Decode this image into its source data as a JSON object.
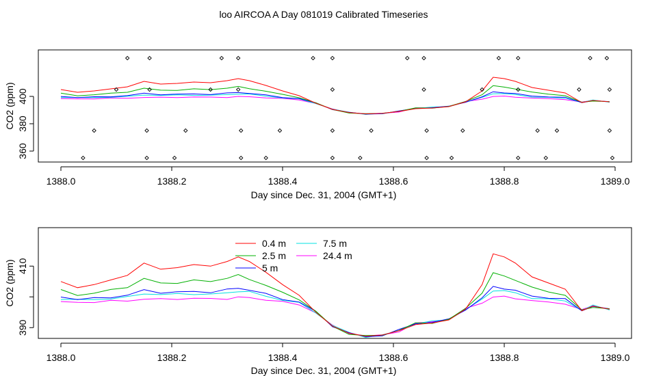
{
  "title": "loo AIRCOA A  Day 081019  Calibrated Timeseries",
  "chart_data": [
    {
      "type": "line",
      "xlabel": "Day since Dec. 31, 2004 (GMT+1)",
      "ylabel": "CO2 (ppm)",
      "xlim": [
        1388.0,
        1389.0
      ],
      "ylim": [
        352,
        434
      ],
      "x_ticks": [
        1388.0,
        1388.2,
        1388.4,
        1388.6,
        1388.8,
        1389.0
      ],
      "x_tick_labels": [
        "1388.0",
        "1388.2",
        "1388.4",
        "1388.6",
        "1388.8",
        "1389.0"
      ],
      "y_ticks": [
        360,
        380,
        400
      ],
      "y_tick_labels": [
        "360",
        "380",
        "400"
      ],
      "colors": [
        "#ff0000",
        "#00b000",
        "#0000ff",
        "#00e0e0",
        "#ff00ff"
      ],
      "series_scale": [
        1.0,
        0.62,
        0.36,
        0.3,
        0.18
      ],
      "profile": [
        [
          1388.0,
          405.0
        ],
        [
          1388.03,
          403.0
        ],
        [
          1388.06,
          404.0
        ],
        [
          1388.09,
          405.5
        ],
        [
          1388.12,
          407.0
        ],
        [
          1388.15,
          411.0
        ],
        [
          1388.18,
          409.0
        ],
        [
          1388.21,
          409.5
        ],
        [
          1388.24,
          410.5
        ],
        [
          1388.27,
          410.0
        ],
        [
          1388.3,
          411.5
        ],
        [
          1388.32,
          413.0
        ],
        [
          1388.34,
          411.5
        ],
        [
          1388.37,
          408.0
        ],
        [
          1388.4,
          404.0
        ],
        [
          1388.43,
          400.5
        ],
        [
          1388.46,
          395.0
        ],
        [
          1388.49,
          390.5
        ],
        [
          1388.52,
          388.2
        ],
        [
          1388.55,
          387.2
        ],
        [
          1388.58,
          387.6
        ],
        [
          1388.61,
          389.0
        ],
        [
          1388.64,
          391.0
        ],
        [
          1388.67,
          391.5
        ],
        [
          1388.7,
          392.5
        ],
        [
          1388.73,
          396.0
        ],
        [
          1388.76,
          404.0
        ],
        [
          1388.78,
          414.0
        ],
        [
          1388.8,
          413.0
        ],
        [
          1388.82,
          411.0
        ],
        [
          1388.85,
          406.5
        ],
        [
          1388.88,
          404.5
        ],
        [
          1388.91,
          402.5
        ],
        [
          1388.94,
          395.5
        ],
        [
          1388.96,
          397.0
        ],
        [
          1388.99,
          396.0
        ]
      ],
      "markers": [
        [
          1388.04,
          355
        ],
        [
          1388.06,
          375
        ],
        [
          1388.1,
          405
        ],
        [
          1388.12,
          428
        ],
        [
          1388.16,
          428
        ],
        [
          1388.16,
          405
        ],
        [
          1388.155,
          375
        ],
        [
          1388.155,
          355
        ],
        [
          1388.205,
          355
        ],
        [
          1388.225,
          375
        ],
        [
          1388.27,
          405
        ],
        [
          1388.29,
          428
        ],
        [
          1388.32,
          428
        ],
        [
          1388.32,
          405
        ],
        [
          1388.325,
          375
        ],
        [
          1388.325,
          355
        ],
        [
          1388.37,
          355
        ],
        [
          1388.395,
          375
        ],
        [
          1388.455,
          428
        ],
        [
          1388.49,
          428
        ],
        [
          1388.49,
          405
        ],
        [
          1388.49,
          375
        ],
        [
          1388.49,
          355
        ],
        [
          1388.54,
          355
        ],
        [
          1388.56,
          375
        ],
        [
          1388.625,
          428
        ],
        [
          1388.655,
          428
        ],
        [
          1388.655,
          405
        ],
        [
          1388.66,
          375
        ],
        [
          1388.66,
          355
        ],
        [
          1388.705,
          355
        ],
        [
          1388.725,
          375
        ],
        [
          1388.76,
          405
        ],
        [
          1388.79,
          428
        ],
        [
          1388.825,
          428
        ],
        [
          1388.825,
          405
        ],
        [
          1388.825,
          355
        ],
        [
          1388.86,
          375
        ],
        [
          1388.875,
          355
        ],
        [
          1388.895,
          375
        ],
        [
          1388.935,
          405
        ],
        [
          1388.955,
          428
        ],
        [
          1388.985,
          428
        ],
        [
          1388.99,
          405
        ],
        [
          1388.99,
          375
        ],
        [
          1388.995,
          355
        ]
      ]
    },
    {
      "type": "line",
      "xlabel": "Day since Dec. 31, 2004 (GMT+1)",
      "ylabel": "CO2 (ppm)",
      "xlim": [
        1388.0,
        1389.0
      ],
      "ylim": [
        386.5,
        422.5
      ],
      "x_ticks": [
        1388.0,
        1388.2,
        1388.4,
        1388.6,
        1388.8,
        1389.0
      ],
      "x_tick_labels": [
        "1388.0",
        "1388.2",
        "1388.4",
        "1388.6",
        "1388.8",
        "1389.0"
      ],
      "y_ticks": [
        390,
        400,
        410
      ],
      "y_tick_labels": [
        "390",
        "",
        "410"
      ],
      "legend": {
        "entries": [
          {
            "label": "0.4 m",
            "color": "#ff0000"
          },
          {
            "label": "2.5 m",
            "color": "#00b000"
          },
          {
            "label": "5 m",
            "color": "#0000ff"
          },
          {
            "label": "7.5 m",
            "color": "#00e0e0"
          },
          {
            "label": "24.4 m",
            "color": "#ff00ff"
          }
        ]
      }
    }
  ]
}
